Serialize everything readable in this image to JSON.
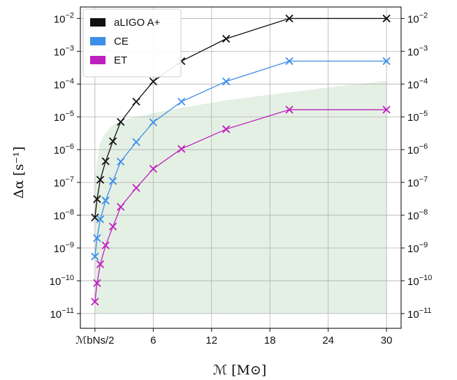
{
  "chart_data": {
    "type": "scatter",
    "xlabel": "ℳ [M⊙]",
    "ylabel": "Δα [s⁻¹]",
    "xlim": [
      -1.5,
      31.5
    ],
    "ylim_log10": [
      -11.45,
      -1.65
    ],
    "y_scale": "log",
    "grid": true,
    "legend_position": "top-left",
    "x_ticks": [
      {
        "value": 0.0,
        "label": "ℳbNs/2"
      },
      {
        "value": 6,
        "label": "6"
      },
      {
        "value": 12,
        "label": "12"
      },
      {
        "value": 18,
        "label": "18"
      },
      {
        "value": 24,
        "label": "24"
      },
      {
        "value": 30,
        "label": "30"
      }
    ],
    "y_tick_exponents": [
      -11,
      -10,
      -9,
      -8,
      -7,
      -6,
      -5,
      -4,
      -3,
      -2
    ],
    "y_tick_base": "10",
    "shaded_region": {
      "color": "#2e8b2e",
      "opacity": 0.13,
      "bottom": 1e-11,
      "x": [
        0,
        0.5,
        1.0,
        1.5,
        2.0,
        3.0,
        4.0,
        6.0,
        9.0,
        13.5,
        20.0,
        25.0,
        30.0
      ],
      "top": [
        1.6e-07,
        1.5e-06,
        3e-06,
        4.5e-06,
        6e-06,
        7.8e-06,
        9.5e-06,
        1.3e-05,
        1.9e-05,
        3.2e-05,
        5.6e-05,
        8.5e-05,
        0.000125
      ]
    },
    "series": [
      {
        "name": "aLIGO A+",
        "color": "#111111",
        "x": [
          0.0,
          0.22,
          0.55,
          1.1,
          1.85,
          2.65,
          4.25,
          6.0,
          8.9,
          13.5,
          20.0,
          30.0
        ],
        "y": [
          8.5e-09,
          3.1e-08,
          1.2e-07,
          4.4e-07,
          1.8e-06,
          7e-06,
          2.9e-05,
          0.00012,
          0.0005,
          0.0024,
          0.01,
          0.01
        ]
      },
      {
        "name": "CE",
        "color": "#3d8ee8",
        "x": [
          0.0,
          0.22,
          0.55,
          1.1,
          1.85,
          2.65,
          4.25,
          6.0,
          8.9,
          13.5,
          20.0,
          30.0
        ],
        "y": [
          5.5e-10,
          2e-09,
          7.5e-09,
          2.8e-08,
          1.1e-07,
          4.3e-07,
          1.7e-06,
          6.8e-06,
          2.9e-05,
          0.00012,
          0.0005,
          0.0005
        ]
      },
      {
        "name": "ET",
        "color": "#c01fbf",
        "x": [
          0.0,
          0.22,
          0.55,
          1.1,
          1.85,
          2.65,
          4.25,
          6.0,
          8.9,
          13.5,
          20.0,
          30.0
        ],
        "y": [
          2.3e-11,
          8.5e-11,
          3.2e-10,
          1.2e-09,
          4.5e-09,
          1.8e-08,
          6.8e-08,
          2.6e-07,
          1.05e-06,
          4.2e-06,
          1.65e-05,
          1.65e-05
        ]
      }
    ]
  }
}
